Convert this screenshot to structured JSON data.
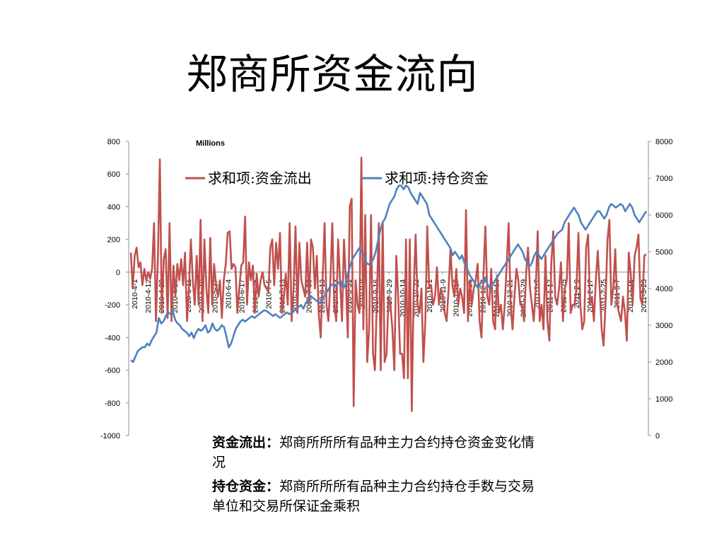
{
  "title": "郑商所资金流向",
  "chart_data": {
    "type": "line",
    "unit_label": "Millions",
    "left_axis": {
      "min": -1000,
      "max": 800,
      "ticks": [
        800,
        600,
        400,
        200,
        0,
        -200,
        -400,
        -600,
        -800,
        -1000
      ]
    },
    "right_axis": {
      "min": 0,
      "max": 8000,
      "ticks": [
        8000,
        7000,
        6000,
        5000,
        4000,
        3000,
        2000,
        1000,
        0
      ]
    },
    "x_labels": [
      "2010-4-1",
      "2010-4-12",
      "2010-4-22",
      "2010-4-30",
      "2010-5-11",
      "2010-5-19",
      "2010-5-27",
      "2010-6-4",
      "2010-6-17",
      "2010-6-25",
      "2010-7-5",
      "2010-7-13",
      "2010-7-22",
      "2010-7-30",
      "2010-8-13",
      "2010-8-23",
      "2010-8-31",
      "2010-9-8",
      "2010-9-16",
      "2010-9-29",
      "2010-10-14",
      "2010-10-22",
      "2010-11-1",
      "2010-11-9",
      "2010-11-17",
      "2010-11-25",
      "2010-12-3",
      "2010-12-13",
      "2010-12-21",
      "2010-12-29",
      "2011-1-7",
      "2011-1-17",
      "2011-1-25",
      "2011-2-9",
      "2011-2-17",
      "2011-2-25",
      "2011-3-7",
      "2011-3-15",
      "2011-3-23"
    ],
    "legend_position": "top",
    "series": [
      {
        "name": "求和项:资金流出",
        "axis": "left",
        "color": "#c0504d",
        "values": [
          120,
          -100,
          100,
          150,
          30,
          60,
          -80,
          20,
          -50,
          0,
          -40,
          20,
          300,
          -300,
          100,
          690,
          -250,
          80,
          140,
          -280,
          300,
          -300,
          40,
          -150,
          50,
          -50,
          80,
          -80,
          120,
          -300,
          -100,
          200,
          -50,
          -200,
          100,
          -200,
          320,
          -300,
          200,
          -100,
          -250,
          210,
          -200,
          50,
          -80,
          -150,
          -50,
          -280,
          -50,
          50,
          240,
          250,
          20,
          50,
          30,
          -250,
          -100,
          40,
          60,
          340,
          -200,
          60,
          -50,
          40,
          -250,
          -10,
          -150,
          -50,
          0,
          -80,
          -100,
          -120,
          150,
          200,
          -80,
          180,
          20,
          240,
          -250,
          -150,
          -10,
          -200,
          300,
          -300,
          -100,
          280,
          -250,
          180,
          -50,
          -100,
          -150,
          180,
          -200,
          200,
          150,
          -100,
          100,
          -250,
          -400,
          -50,
          300,
          -200,
          -300,
          -50,
          300,
          -200,
          -300,
          200,
          -50,
          -300,
          200,
          -50,
          -400,
          400,
          450,
          -820,
          -50,
          -200,
          -250,
          700,
          -350,
          350,
          -550,
          -350,
          350,
          -500,
          -600,
          -150,
          300,
          -600,
          300,
          -550,
          -500,
          -150,
          -200,
          -350,
          -600,
          100,
          -150,
          -500,
          -500,
          -650,
          200,
          -650,
          200,
          -850,
          -100,
          230,
          -200,
          -250,
          -100,
          -550,
          -300,
          280,
          -100,
          -80,
          -200,
          -150,
          30,
          -200,
          -100,
          -150,
          -250,
          -300,
          -100,
          140,
          -80,
          -150,
          20,
          -200,
          -100,
          -150,
          -250,
          380,
          -300,
          -50,
          -200,
          -100,
          -50,
          50,
          -300,
          -400,
          -20,
          280,
          -150,
          -200,
          20,
          -300,
          -350,
          -20,
          -250,
          -200,
          -350,
          -200,
          50,
          300,
          -200,
          -350,
          -150,
          20,
          -50,
          -200,
          -200,
          -300,
          -10,
          150,
          -100,
          -200,
          -300,
          -100,
          250,
          -300,
          -200,
          -350,
          100,
          -300,
          -420,
          50,
          250,
          -150,
          -200,
          -100,
          60,
          -300,
          -100,
          -50,
          300,
          -250,
          -200,
          -200,
          -100,
          240,
          -200,
          -350,
          -300,
          150,
          230,
          -200,
          -150,
          -300,
          -50,
          130,
          -100,
          -350,
          -450,
          -200,
          200,
          320,
          -200,
          -100,
          140,
          -200,
          -250,
          -300,
          -150,
          -250,
          -420,
          120,
          -10,
          -200,
          100,
          150,
          230,
          -160,
          -200,
          100,
          110
        ]
      },
      {
        "name": "求和项:持仓资金",
        "axis": "right",
        "color": "#4f81bd",
        "values": [
          2050,
          2000,
          2150,
          2300,
          2350,
          2400,
          2400,
          2500,
          2450,
          2600,
          2700,
          2800,
          3200,
          3050,
          3100,
          3250,
          3350,
          3300,
          3400,
          3150,
          3050,
          3000,
          2900,
          2850,
          2800,
          2700,
          2800,
          2650,
          2800,
          2900,
          2850,
          2900,
          3000,
          2800,
          2850,
          3050,
          2900,
          2850,
          2900,
          3000,
          2950,
          2700,
          2400,
          2500,
          2700,
          2900,
          3000,
          3100,
          3150,
          3100,
          3150,
          3200,
          3250,
          3200,
          3250,
          3300,
          3350,
          3400,
          3400,
          3350,
          3300,
          3250,
          3300,
          3250,
          3200,
          3250,
          3300,
          3350,
          3300,
          3350,
          3400,
          3450,
          3500,
          3550,
          3450,
          3600,
          3700,
          3800,
          3750,
          3700,
          3650,
          3600,
          3700,
          3800,
          3900,
          4000,
          4100,
          4100,
          4050,
          4150,
          4200,
          4000,
          4100,
          4400,
          4600,
          4800,
          4900,
          5000,
          5100,
          5000,
          4900,
          4700,
          4650,
          4700,
          4800,
          5000,
          5300,
          5600,
          5800,
          5900,
          6100,
          6300,
          6400,
          6500,
          6700,
          6800,
          6800,
          6700,
          6800,
          6750,
          6600,
          6500,
          6400,
          6300,
          6600,
          6500,
          6400,
          6300,
          6000,
          5900,
          5800,
          5700,
          5600,
          5500,
          5400,
          5300,
          5200,
          5100,
          4900,
          5000,
          4900,
          4800,
          4900,
          4700,
          4600,
          4400,
          4300,
          4200,
          4100,
          4000,
          4150,
          4200,
          4300,
          4100,
          4000,
          4100,
          4200,
          4300,
          4400,
          4500,
          4600,
          4700,
          4800,
          4900,
          5000,
          5100,
          5200,
          5100,
          5000,
          4800,
          4700,
          4600,
          4700,
          4900,
          5000,
          4900,
          4800,
          4900,
          5000,
          5100,
          5200,
          5300,
          5400,
          5500,
          5550,
          5600,
          5800,
          5900,
          6000,
          6100,
          6200,
          6100,
          6000,
          5800,
          5700,
          5600,
          5700,
          5800,
          5900,
          6000,
          6100,
          6100,
          6000,
          5900,
          6000,
          6200,
          6300,
          6250,
          6200,
          6250,
          6300,
          6250,
          6100,
          6200,
          6300,
          6200,
          6000,
          5900,
          5800,
          5900,
          6000,
          6100
        ]
      }
    ]
  },
  "notes": [
    {
      "label": "资金流出：",
      "text": "郑商所所所有品种主力合约持仓资金变化情况"
    },
    {
      "label": "持仓资金：",
      "text": "郑商所所所有品种主力合约持仓手数与交易单位和交易所保证金乘积"
    }
  ]
}
